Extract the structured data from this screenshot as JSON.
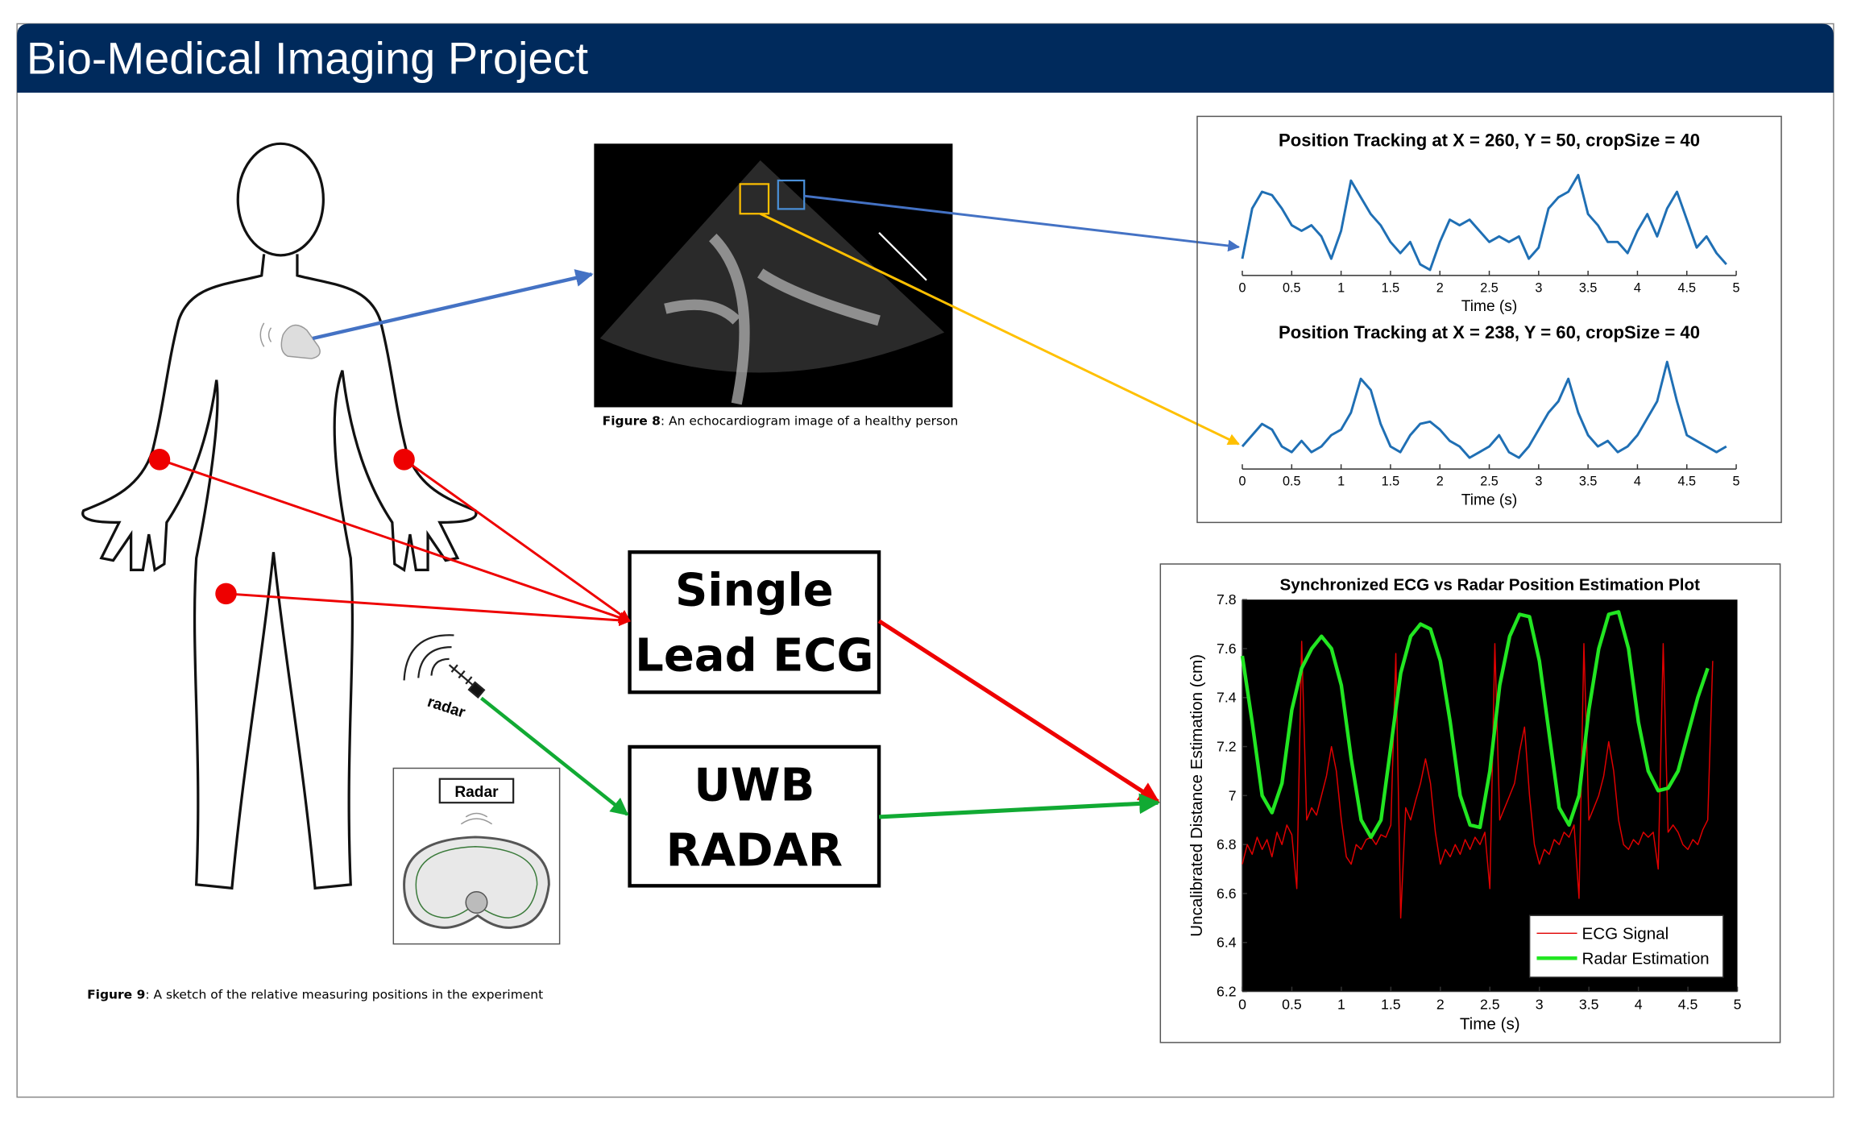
{
  "header": {
    "title": "Bio-Medical Imaging Project"
  },
  "figure8": {
    "label": "Figure 8",
    "text": ": An echocardiogram image of a healthy person"
  },
  "figure9": {
    "label": "Figure 9",
    "text": ": A sketch of the relative measuring positions in the experiment"
  },
  "sketch": {
    "radar_label": "radar",
    "inset_label": "Radar"
  },
  "boxes": [
    {
      "lines": [
        "Single",
        "Lead ECG"
      ]
    },
    {
      "lines": [
        "UWB",
        "RADAR"
      ]
    }
  ],
  "chart_data": [
    {
      "type": "line",
      "title": "Position Tracking at X = 260, Y = 50, cropSize = 40",
      "xlabel": "Time (s)",
      "xlim": [
        0,
        5
      ],
      "xticks": [
        0,
        0.5,
        1,
        1.5,
        2,
        2.5,
        3,
        3.5,
        4,
        4.5,
        5
      ],
      "ylim": [
        0,
        1
      ],
      "series": [
        {
          "color": "#1f6fb4",
          "x": [
            0,
            0.1,
            0.2,
            0.3,
            0.4,
            0.5,
            0.6,
            0.7,
            0.8,
            0.9,
            1,
            1.1,
            1.2,
            1.3,
            1.4,
            1.5,
            1.6,
            1.7,
            1.8,
            1.9,
            2,
            2.1,
            2.2,
            2.3,
            2.4,
            2.5,
            2.6,
            2.7,
            2.8,
            2.9,
            3,
            3.1,
            3.2,
            3.3,
            3.4,
            3.5,
            3.6,
            3.7,
            3.8,
            3.9,
            4,
            4.1,
            4.2,
            4.3,
            4.4,
            4.5,
            4.6,
            4.7,
            4.8,
            4.9
          ],
          "values": [
            0.15,
            0.6,
            0.75,
            0.72,
            0.6,
            0.45,
            0.4,
            0.45,
            0.35,
            0.15,
            0.4,
            0.85,
            0.7,
            0.55,
            0.45,
            0.3,
            0.2,
            0.3,
            0.1,
            0.05,
            0.3,
            0.5,
            0.45,
            0.5,
            0.4,
            0.3,
            0.35,
            0.3,
            0.35,
            0.15,
            0.25,
            0.6,
            0.7,
            0.75,
            0.9,
            0.55,
            0.45,
            0.3,
            0.3,
            0.2,
            0.4,
            0.55,
            0.35,
            0.6,
            0.75,
            0.5,
            0.25,
            0.35,
            0.2,
            0.1
          ]
        }
      ]
    },
    {
      "type": "line",
      "title": "Position Tracking at X = 238, Y = 60, cropSize = 40",
      "xlabel": "Time (s)",
      "xlim": [
        0,
        5
      ],
      "xticks": [
        0,
        0.5,
        1,
        1.5,
        2,
        2.5,
        3,
        3.5,
        4,
        4.5,
        5
      ],
      "ylim": [
        0,
        1
      ],
      "series": [
        {
          "color": "#1f6fb4",
          "x": [
            0,
            0.1,
            0.2,
            0.3,
            0.4,
            0.5,
            0.6,
            0.7,
            0.8,
            0.9,
            1,
            1.1,
            1.2,
            1.3,
            1.4,
            1.5,
            1.6,
            1.7,
            1.8,
            1.9,
            2,
            2.1,
            2.2,
            2.3,
            2.4,
            2.5,
            2.6,
            2.7,
            2.8,
            2.9,
            3,
            3.1,
            3.2,
            3.3,
            3.4,
            3.5,
            3.6,
            3.7,
            3.8,
            3.9,
            4,
            4.1,
            4.2,
            4.3,
            4.4,
            4.5,
            4.6,
            4.7,
            4.8,
            4.9
          ],
          "values": [
            0.2,
            0.3,
            0.4,
            0.35,
            0.2,
            0.15,
            0.25,
            0.15,
            0.2,
            0.3,
            0.35,
            0.5,
            0.8,
            0.7,
            0.4,
            0.2,
            0.15,
            0.3,
            0.4,
            0.42,
            0.35,
            0.25,
            0.2,
            0.1,
            0.15,
            0.2,
            0.3,
            0.15,
            0.1,
            0.2,
            0.35,
            0.5,
            0.6,
            0.8,
            0.5,
            0.3,
            0.2,
            0.25,
            0.15,
            0.2,
            0.3,
            0.45,
            0.6,
            0.95,
            0.6,
            0.3,
            0.25,
            0.2,
            0.15,
            0.2
          ]
        }
      ]
    },
    {
      "type": "line",
      "title": "Synchronized ECG vs Radar Position Estimation Plot",
      "xlabel": "Time (s)",
      "ylabel": "Uncalibrated Distance Estimation (cm)",
      "plot_background": "#000000",
      "legend": "lower right",
      "xlim": [
        0,
        5
      ],
      "xticks": [
        0,
        0.5,
        1,
        1.5,
        2,
        2.5,
        3,
        3.5,
        4,
        4.5,
        5
      ],
      "ylim": [
        6.2,
        7.8
      ],
      "yticks": [
        6.2,
        6.4,
        6.6,
        6.8,
        7,
        7.2,
        7.4,
        7.6,
        7.8
      ],
      "series": [
        {
          "name": "ECG Signal",
          "color": "#e00000",
          "x": [
            0,
            0.05,
            0.1,
            0.15,
            0.2,
            0.25,
            0.3,
            0.35,
            0.4,
            0.45,
            0.5,
            0.55,
            0.6,
            0.65,
            0.7,
            0.75,
            0.8,
            0.85,
            0.9,
            0.95,
            1,
            1.05,
            1.1,
            1.15,
            1.2,
            1.25,
            1.3,
            1.35,
            1.4,
            1.45,
            1.5,
            1.55,
            1.6,
            1.65,
            1.7,
            1.75,
            1.8,
            1.85,
            1.9,
            1.95,
            2,
            2.05,
            2.1,
            2.15,
            2.2,
            2.25,
            2.3,
            2.35,
            2.4,
            2.45,
            2.5,
            2.55,
            2.6,
            2.65,
            2.7,
            2.75,
            2.8,
            2.85,
            2.9,
            2.95,
            3,
            3.05,
            3.1,
            3.15,
            3.2,
            3.25,
            3.3,
            3.35,
            3.4,
            3.45,
            3.5,
            3.55,
            3.6,
            3.65,
            3.7,
            3.75,
            3.8,
            3.85,
            3.9,
            3.95,
            4,
            4.05,
            4.1,
            4.15,
            4.2,
            4.25,
            4.3,
            4.35,
            4.4,
            4.45,
            4.5,
            4.55,
            4.6,
            4.65,
            4.7,
            4.75
          ],
          "values": [
            6.72,
            6.8,
            6.76,
            6.83,
            6.78,
            6.82,
            6.75,
            6.85,
            6.8,
            6.88,
            6.84,
            6.62,
            7.63,
            6.9,
            6.95,
            6.92,
            7.0,
            7.08,
            7.2,
            7.1,
            6.9,
            6.75,
            6.72,
            6.8,
            6.78,
            6.82,
            6.83,
            6.8,
            6.84,
            6.83,
            6.88,
            7.58,
            6.5,
            6.95,
            6.9,
            6.98,
            7.05,
            7.15,
            7.05,
            6.85,
            6.72,
            6.78,
            6.75,
            6.8,
            6.76,
            6.82,
            6.78,
            6.83,
            6.8,
            6.85,
            6.62,
            7.62,
            6.9,
            6.95,
            7.0,
            7.05,
            7.18,
            7.28,
            7.0,
            6.8,
            6.72,
            6.78,
            6.76,
            6.82,
            6.8,
            6.85,
            6.83,
            6.88,
            6.58,
            7.62,
            6.9,
            6.95,
            7.0,
            7.08,
            7.22,
            7.1,
            6.9,
            6.8,
            6.78,
            6.82,
            6.8,
            6.85,
            6.83,
            6.85,
            6.7,
            7.62,
            6.85,
            6.88,
            6.85,
            6.8,
            6.78,
            6.82,
            6.8,
            6.86,
            6.9,
            7.55
          ]
        },
        {
          "name": "Radar Estimation",
          "color": "#22e622",
          "x": [
            0,
            0.1,
            0.2,
            0.3,
            0.4,
            0.5,
            0.6,
            0.7,
            0.8,
            0.9,
            1,
            1.1,
            1.2,
            1.3,
            1.4,
            1.5,
            1.6,
            1.7,
            1.8,
            1.9,
            2,
            2.1,
            2.2,
            2.3,
            2.4,
            2.5,
            2.6,
            2.7,
            2.8,
            2.9,
            3,
            3.1,
            3.2,
            3.3,
            3.4,
            3.5,
            3.6,
            3.7,
            3.8,
            3.9,
            4,
            4.1,
            4.2,
            4.3,
            4.4,
            4.5,
            4.6,
            4.7
          ],
          "values": [
            7.57,
            7.3,
            7.0,
            6.93,
            7.05,
            7.35,
            7.52,
            7.6,
            7.65,
            7.6,
            7.45,
            7.15,
            6.9,
            6.83,
            6.9,
            7.2,
            7.5,
            7.65,
            7.7,
            7.68,
            7.55,
            7.3,
            7.0,
            6.88,
            6.87,
            7.1,
            7.45,
            7.65,
            7.74,
            7.73,
            7.55,
            7.25,
            6.95,
            6.88,
            7.0,
            7.35,
            7.6,
            7.74,
            7.75,
            7.6,
            7.3,
            7.1,
            7.02,
            7.03,
            7.1,
            7.25,
            7.4,
            7.52
          ]
        }
      ]
    }
  ]
}
